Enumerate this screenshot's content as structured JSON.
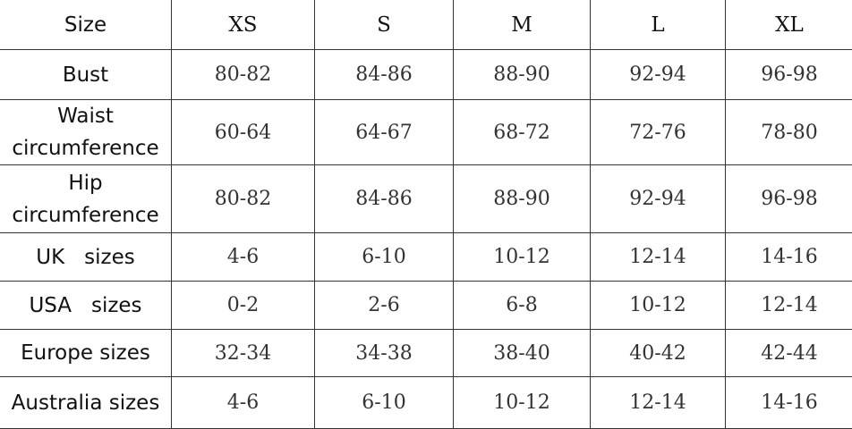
{
  "header": {
    "label": "Size",
    "sizes": [
      "XS",
      "S",
      "M",
      "L",
      "XL"
    ]
  },
  "rows": [
    {
      "label": "Bust",
      "values": [
        "80-82",
        "84-86",
        "88-90",
        "92-94",
        "96-98"
      ]
    },
    {
      "label": "Waist circumference",
      "values": [
        "60-64",
        "64-67",
        "68-72",
        "72-76",
        "78-80"
      ]
    },
    {
      "label": "Hip circumference",
      "values": [
        "80-82",
        "84-86",
        "88-90",
        "92-94",
        "96-98"
      ]
    },
    {
      "label": "UK   sizes",
      "values": [
        "4-6",
        "6-10",
        "10-12",
        "12-14",
        "14-16"
      ]
    },
    {
      "label": "USA   sizes",
      "values": [
        "0-2",
        "2-6",
        "6-8",
        "10-12",
        "12-14"
      ]
    },
    {
      "label": "Europe sizes",
      "values": [
        "32-34",
        "34-38",
        "38-40",
        "40-42",
        "42-44"
      ]
    },
    {
      "label": "Australia sizes",
      "values": [
        "4-6",
        "6-10",
        "10-12",
        "12-14",
        "14-16"
      ]
    }
  ]
}
